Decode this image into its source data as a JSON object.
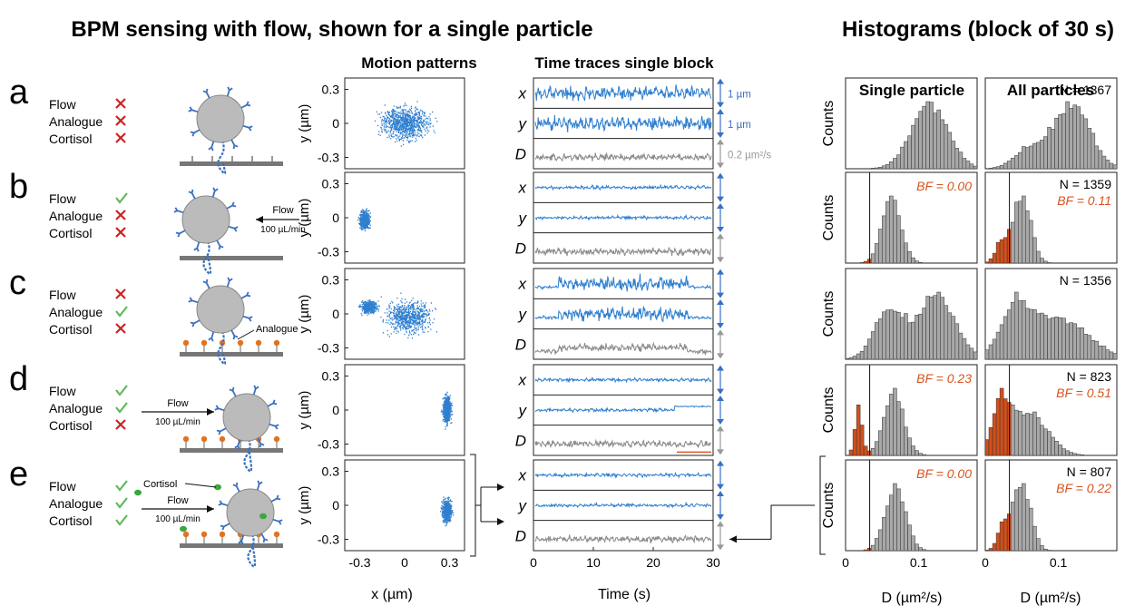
{
  "figure": {
    "main_title": "BPM sensing with flow, shown for a single particle",
    "hist_title": "Histograms (block of 30 s)",
    "motion_header": "Motion patterns",
    "trace_header": "Time traces single block",
    "single_header": "Single particle",
    "all_header": "All particles"
  },
  "conditions": [
    {
      "letter": "a",
      "labels": [
        "Flow",
        "Analogue",
        "Cortisol"
      ],
      "states": [
        false,
        false,
        false
      ]
    },
    {
      "letter": "b",
      "labels": [
        "Flow",
        "Analogue",
        "Cortisol"
      ],
      "states": [
        true,
        false,
        false
      ]
    },
    {
      "letter": "c",
      "labels": [
        "Flow",
        "Analogue",
        "Cortisol"
      ],
      "states": [
        false,
        true,
        false
      ]
    },
    {
      "letter": "d",
      "labels": [
        "Flow",
        "Analogue",
        "Cortisol"
      ],
      "states": [
        true,
        true,
        false
      ]
    },
    {
      "letter": "e",
      "labels": [
        "Flow",
        "Analogue",
        "Cortisol"
      ],
      "states": [
        true,
        true,
        true
      ]
    }
  ],
  "schematic": {
    "flow_word": "Flow",
    "flow_rate": "100 µL/min",
    "analogue_label": "Analogue",
    "cortisol_label": "Cortisol"
  },
  "motion": {
    "ylabel": "y (µm)",
    "xlabel": "x (µm)",
    "yticks": [
      "0.3",
      "0",
      "-0.3"
    ],
    "xticks": [
      "-0.3",
      "0",
      "0.3"
    ]
  },
  "traces": {
    "labels": [
      "x",
      "y",
      "D"
    ],
    "scale_labels": [
      "1 µm",
      "1 µm",
      "0.2 µm²/s"
    ],
    "xlabel": "Time (s)",
    "xticks": [
      "0",
      "10",
      "20",
      "30"
    ]
  },
  "histograms": {
    "ylabel": "Counts",
    "xlabel": "D (µm²/s)",
    "xticks": [
      "0",
      "0.1"
    ],
    "single": [
      {
        "bf": ""
      },
      {
        "bf": "BF = 0.00"
      },
      {
        "bf": ""
      },
      {
        "bf": "BF = 0.23"
      },
      {
        "bf": "BF = 0.00"
      }
    ],
    "all": [
      {
        "n": "N = 1367",
        "bf": ""
      },
      {
        "n": "N = 1359",
        "bf": "BF = 0.11"
      },
      {
        "n": "N = 1356",
        "bf": ""
      },
      {
        "n": "N = 823",
        "bf": "BF = 0.51"
      },
      {
        "n": "N = 807",
        "bf": "BF = 0.22"
      }
    ]
  },
  "colors": {
    "blue": "#2f7fcf",
    "gray_trace": "#8a8a8a",
    "orange": "#d9541e",
    "red_x": "#cc2222",
    "green_check": "#5fb85f",
    "bar_gray": "#a8a8a8",
    "bar_orange": "#d2501c"
  }
}
